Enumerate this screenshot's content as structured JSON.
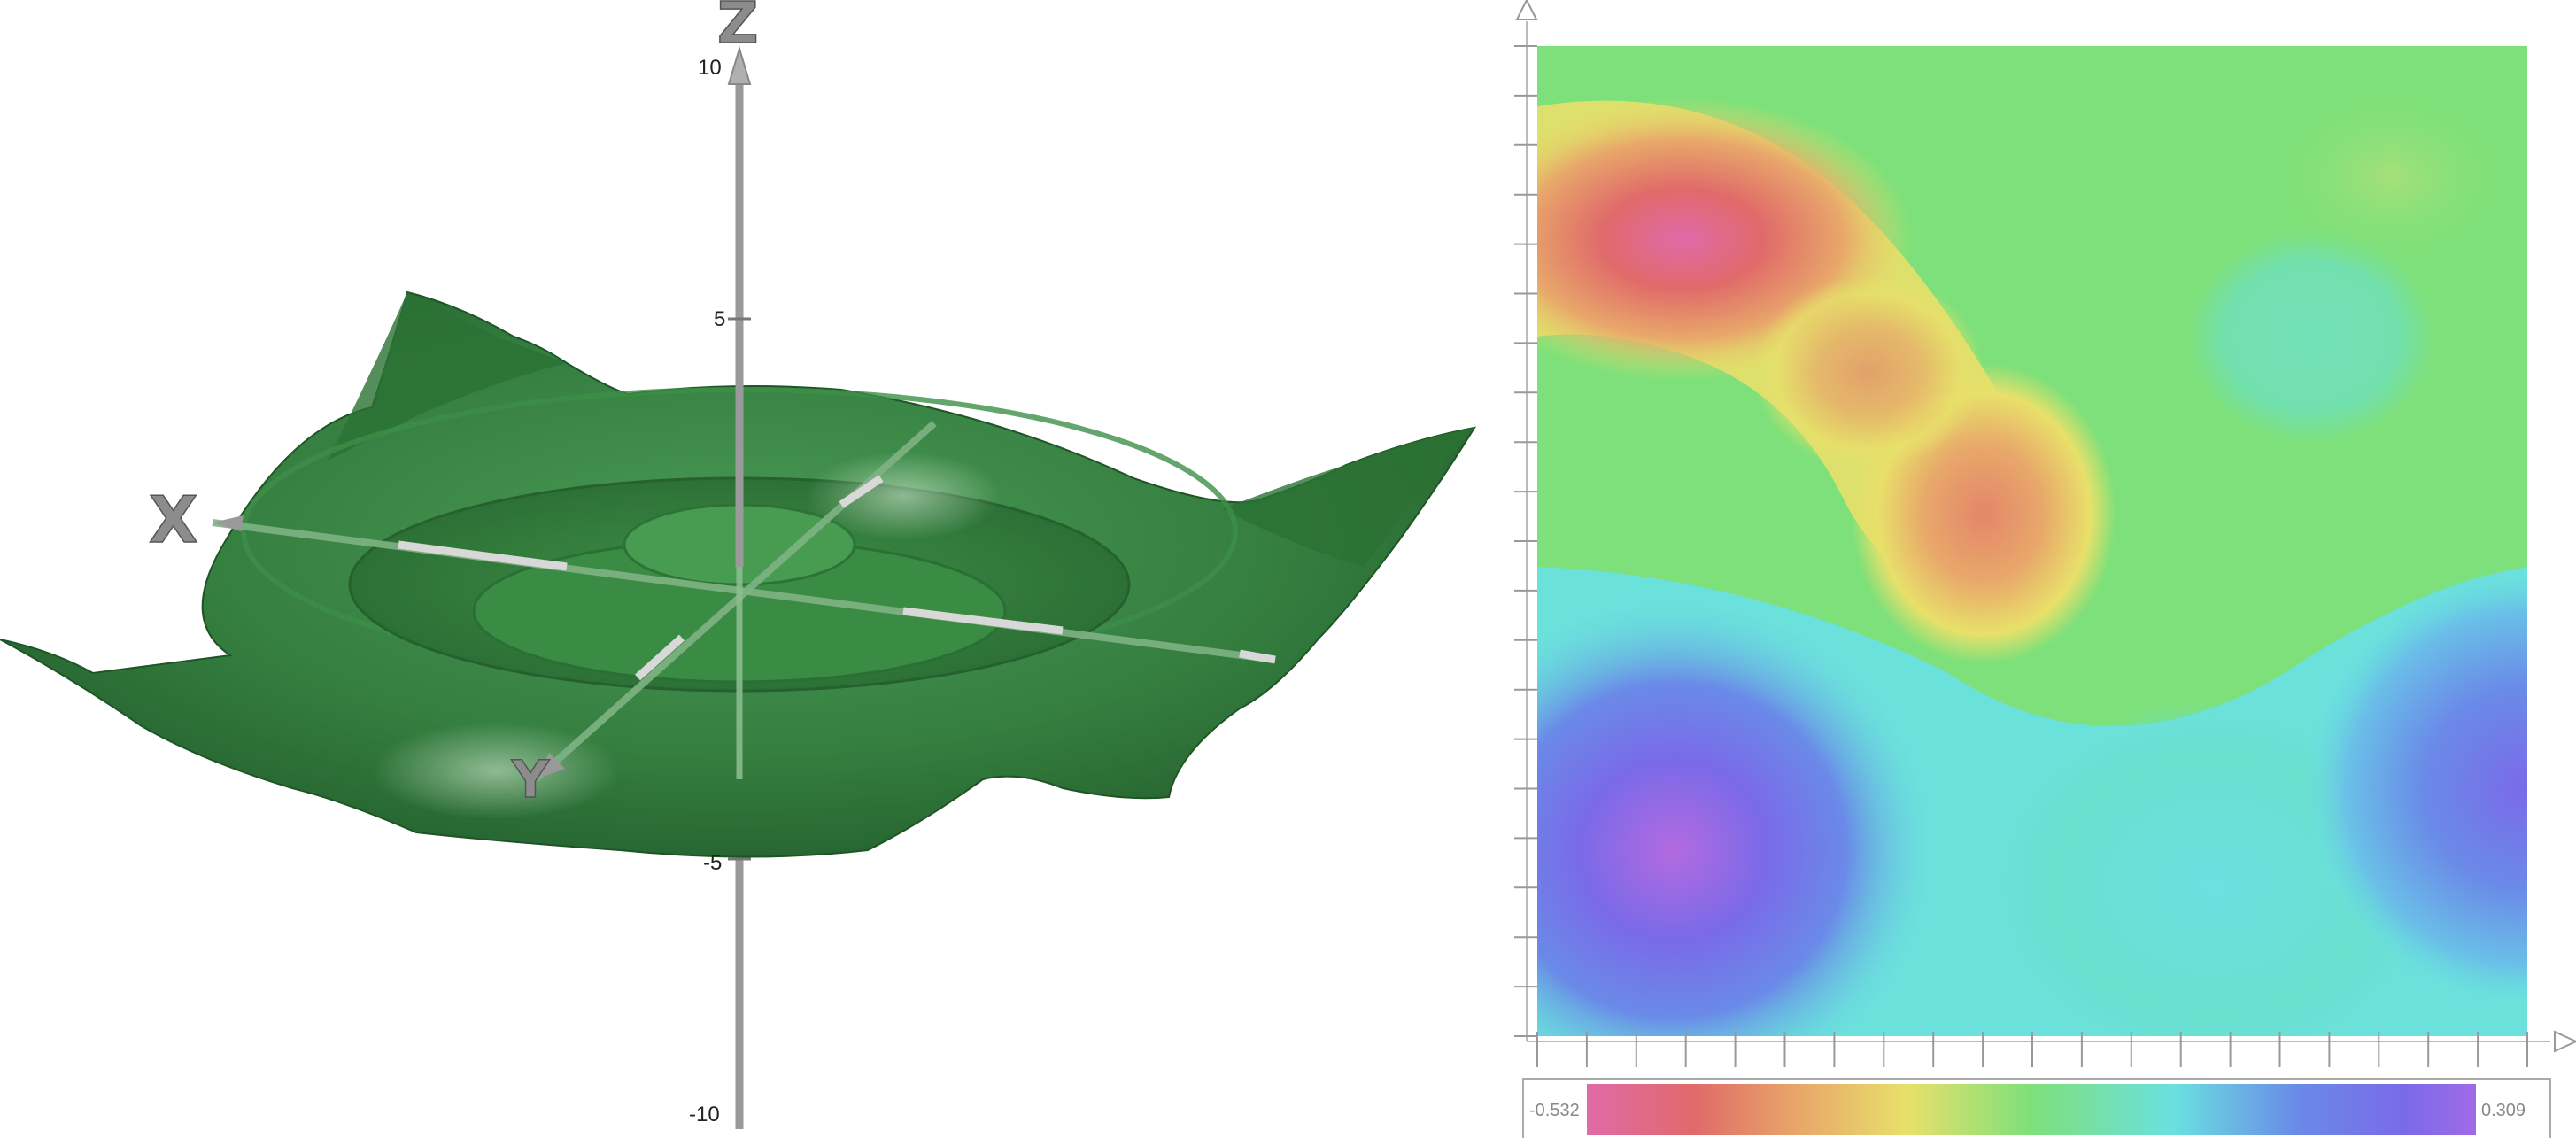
{
  "plot3d": {
    "axis_labels": {
      "x": "X",
      "y": "Y",
      "z": "Z"
    },
    "z_ticks": [
      {
        "label": "10",
        "value": 10
      },
      {
        "label": "5",
        "value": 5
      },
      {
        "label": "-5",
        "value": -5
      },
      {
        "label": "-10",
        "value": -10
      }
    ],
    "surface_color": "#2f7d3b"
  },
  "contour": {
    "colorbar": {
      "min_label": "-0.532",
      "max_label": "0.309",
      "min": -0.532,
      "max": 0.309
    },
    "colors": [
      "#e06aa8",
      "#e06a6a",
      "#e8a86a",
      "#e8e06a",
      "#7ee07a",
      "#6ae0e0",
      "#6a8ae8",
      "#7a6ae8",
      "#a06ae8"
    ],
    "x_ticks": 20,
    "y_ticks": 20
  }
}
